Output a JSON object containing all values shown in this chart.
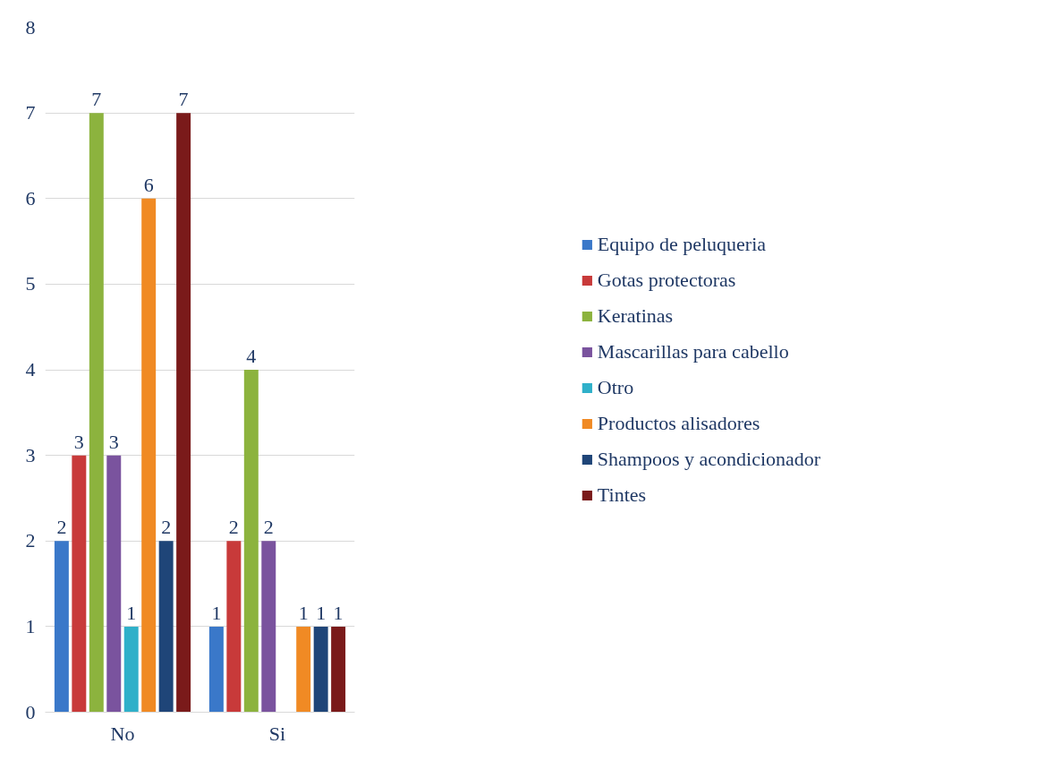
{
  "chart_data": {
    "type": "bar",
    "categories": [
      "No",
      "Si"
    ],
    "series": [
      {
        "name": "Equipo de peluqueria",
        "color": "#3a78c9",
        "values": [
          2,
          1
        ]
      },
      {
        "name": "Gotas protectoras",
        "color": "#c83a3a",
        "values": [
          3,
          2
        ]
      },
      {
        "name": "Keratinas",
        "color": "#8cb33e",
        "values": [
          7,
          4
        ]
      },
      {
        "name": "Mascarillas para cabello",
        "color": "#7a539e",
        "values": [
          3,
          2
        ]
      },
      {
        "name": "Otro",
        "color": "#2fb0c9",
        "values": [
          1,
          null
        ]
      },
      {
        "name": "Productos alisadores",
        "color": "#f08a24",
        "values": [
          6,
          1
        ]
      },
      {
        "name": "Shampoos y acondicionador",
        "color": "#1f4578",
        "values": [
          2,
          1
        ]
      },
      {
        "name": "Tintes",
        "color": "#7a1a1a",
        "values": [
          7,
          1
        ]
      }
    ],
    "ylim": [
      0,
      8
    ],
    "yticks": [
      0,
      1,
      2,
      3,
      4,
      5,
      6,
      7,
      8
    ],
    "grid": "y",
    "legend": "right",
    "data_labels": true
  }
}
